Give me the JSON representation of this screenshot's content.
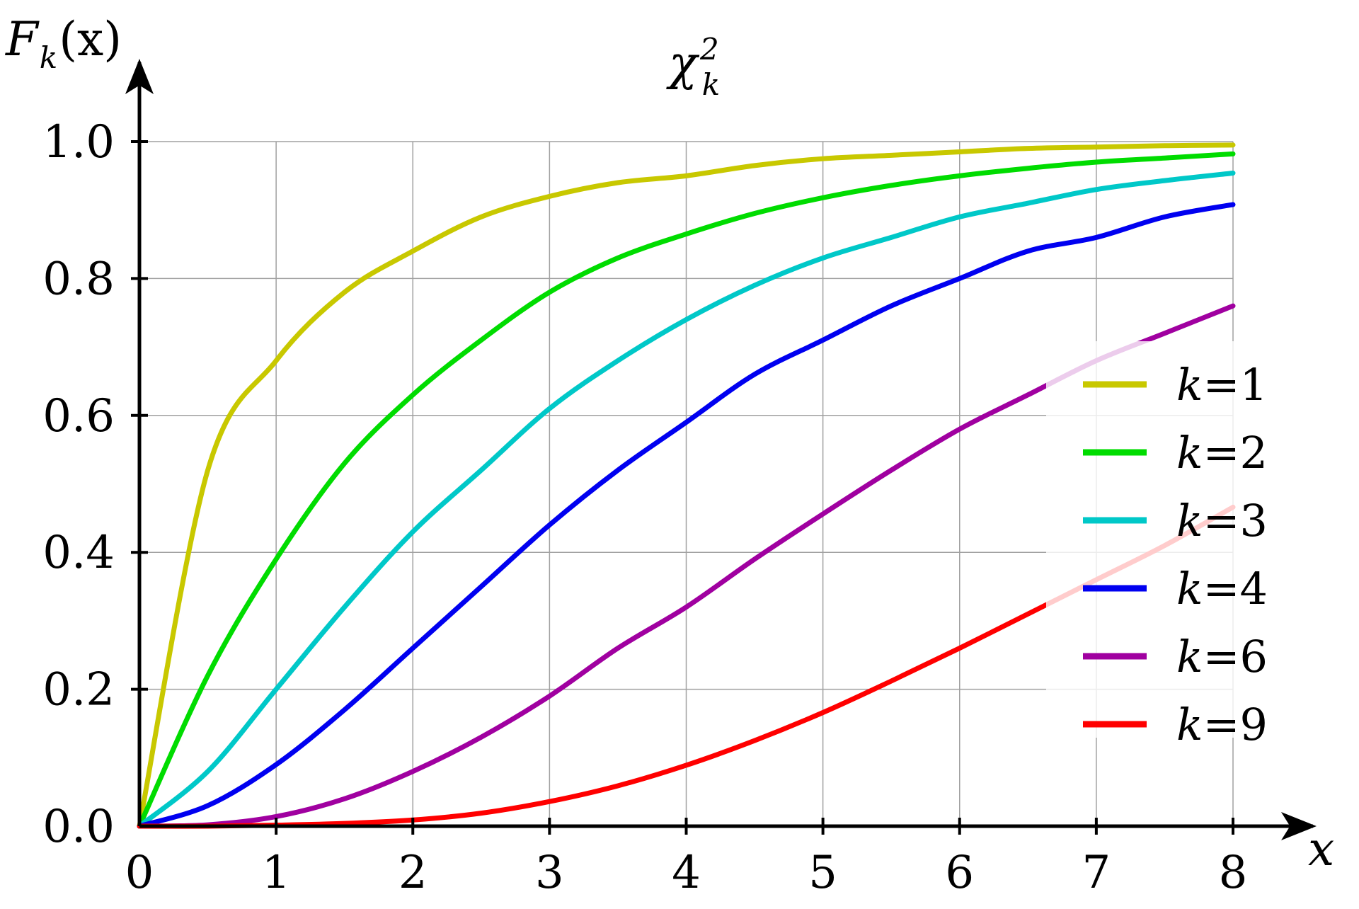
{
  "chart_data": {
    "type": "line",
    "title": "χ",
    "title_superscript": "2",
    "title_subscript": "k",
    "ylabel_main": "F",
    "ylabel_sub": "k",
    "ylabel_arg": "(x)",
    "xlabel": "x",
    "xlim": [
      0,
      8
    ],
    "ylim": [
      0,
      1.0
    ],
    "x_ticks": [
      "0",
      "1",
      "2",
      "3",
      "4",
      "5",
      "6",
      "7",
      "8"
    ],
    "y_ticks": [
      "0.0",
      "0.2",
      "0.4",
      "0.6",
      "0.8",
      "1.0"
    ],
    "grid": true,
    "legend_position": "right",
    "legend_prefix": "k",
    "x": [
      0,
      0.5,
      1,
      1.5,
      2,
      2.5,
      3,
      3.5,
      4,
      4.5,
      5,
      5.5,
      6,
      6.5,
      7,
      7.5,
      8
    ],
    "series": [
      {
        "name": "k=1",
        "label_prefix": "k",
        "label_value": "1",
        "color": "#c8c800",
        "values": [
          0,
          0.52,
          0.68,
          0.78,
          0.84,
          0.89,
          0.92,
          0.94,
          0.95,
          0.965,
          0.975,
          0.98,
          0.985,
          0.99,
          0.992,
          0.994,
          0.995
        ]
      },
      {
        "name": "k=2",
        "label_prefix": "k",
        "label_value": "2",
        "color": "#00dc00",
        "values": [
          0,
          0.22,
          0.39,
          0.53,
          0.63,
          0.71,
          0.78,
          0.83,
          0.865,
          0.895,
          0.918,
          0.936,
          0.95,
          0.961,
          0.97,
          0.976,
          0.982
        ]
      },
      {
        "name": "k=3",
        "label_prefix": "k",
        "label_value": "3",
        "color": "#00c8c8",
        "values": [
          0,
          0.08,
          0.2,
          0.32,
          0.43,
          0.52,
          0.61,
          0.68,
          0.74,
          0.79,
          0.83,
          0.86,
          0.89,
          0.91,
          0.93,
          0.943,
          0.954
        ]
      },
      {
        "name": "k=4",
        "label_prefix": "k",
        "label_value": "4",
        "color": "#0000f0",
        "values": [
          0,
          0.03,
          0.09,
          0.17,
          0.26,
          0.35,
          0.44,
          0.52,
          0.59,
          0.66,
          0.71,
          0.76,
          0.8,
          0.84,
          0.86,
          0.89,
          0.908
        ]
      },
      {
        "name": "k=6",
        "label_prefix": "k",
        "label_value": "6",
        "color": "#a000a0",
        "values": [
          0,
          0.002,
          0.014,
          0.04,
          0.08,
          0.13,
          0.19,
          0.26,
          0.32,
          0.39,
          0.456,
          0.52,
          0.58,
          0.63,
          0.68,
          0.72,
          0.76
        ]
      },
      {
        "name": "k=9",
        "label_prefix": "k",
        "label_value": "9",
        "color": "#ff0000",
        "values": [
          0,
          0.0,
          0.0015,
          0.004,
          0.009,
          0.019,
          0.036,
          0.059,
          0.089,
          0.125,
          0.166,
          0.212,
          0.26,
          0.31,
          0.36,
          0.41,
          0.466
        ]
      }
    ]
  }
}
